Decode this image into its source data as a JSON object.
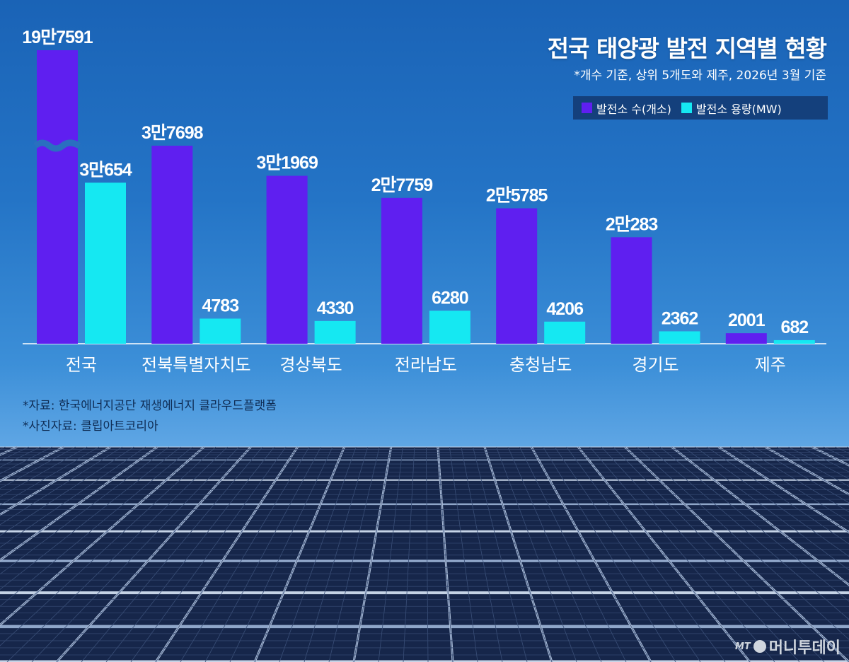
{
  "header": {
    "title": "전국 태양광 발전 지역별 현황",
    "subtitle": "*개수 기준, 상위 5개도와 제주, 2026년 3월 기준"
  },
  "legend": {
    "count_label": "발전소 수(개소)",
    "capacity_label": "발전소 용량(MW)"
  },
  "sources": {
    "line1": "*자료: 한국에너지공단 재생에너지 클라우드플랫폼",
    "line2": "*사진자료: 클립아트코리아"
  },
  "logo": {
    "mt": "MT",
    "name": "머니투데이"
  },
  "colors": {
    "count": "#5f1ff0",
    "capacity": "#15e8f2",
    "label": "#ffffff"
  },
  "chart_data": {
    "type": "bar",
    "categories": [
      "전국",
      "전북특별자치도",
      "경상북도",
      "전라남도",
      "충청남도",
      "경기도",
      "제주"
    ],
    "series": [
      {
        "name": "발전소 수(개소)",
        "values": [
          197591,
          37698,
          31969,
          27759,
          25785,
          20283,
          2001
        ],
        "labels": [
          "19만7591",
          "3만7698",
          "3만1969",
          "2만7759",
          "2만5785",
          "2만283",
          "2001"
        ]
      },
      {
        "name": "발전소 용량(MW)",
        "values": [
          30654,
          4783,
          4330,
          6280,
          4206,
          2362,
          682
        ],
        "labels": [
          "3만654",
          "4783",
          "4330",
          "6280",
          "4206",
          "2362",
          "682"
        ]
      }
    ],
    "axis_break": {
      "category": "전국",
      "series": "발전소 수(개소)"
    },
    "grid": false,
    "legend_position": "top-right"
  }
}
